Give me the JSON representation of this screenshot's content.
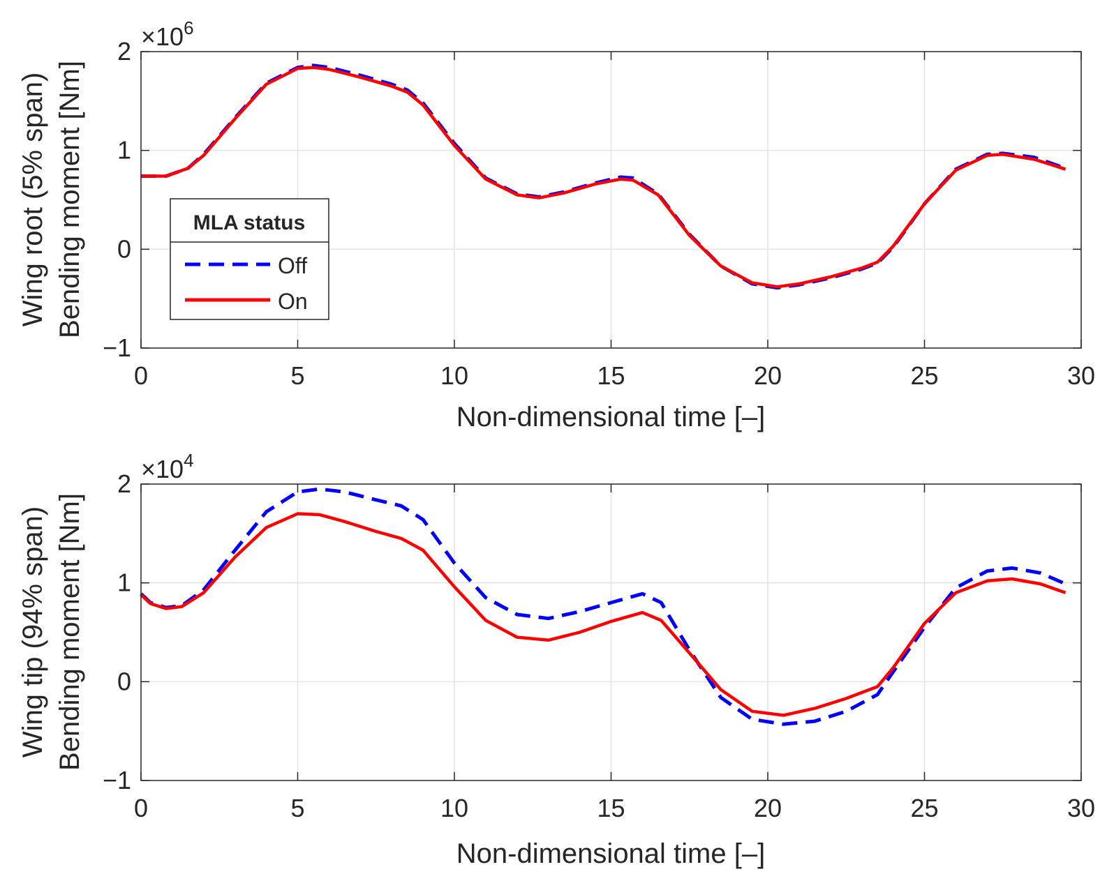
{
  "chart_data": [
    {
      "type": "line",
      "xlabel": "Non-dimensional time [–]",
      "ylabel_line1": "Wing root (5% span)",
      "ylabel_line2": "Bending moment [Nm]",
      "exponent_base": "×10",
      "exponent_power": "6",
      "xlim": [
        0,
        30
      ],
      "ylim": [
        -1,
        2
      ],
      "xticks": [
        0,
        5,
        10,
        15,
        20,
        25,
        30
      ],
      "yticks": [
        -1,
        0,
        1,
        2
      ],
      "xtick_labels": [
        "0",
        "5",
        "10",
        "15",
        "20",
        "25",
        "30"
      ],
      "ytick_labels": [
        "−1",
        "0",
        "1",
        "2"
      ],
      "grid": true,
      "legend": {
        "title": "MLA status",
        "location": "center-left",
        "entries": [
          "Off",
          "On"
        ]
      },
      "series": [
        {
          "name": "Off",
          "style": "dashed",
          "color": "#0000ff",
          "x": [
            0,
            0.8,
            1.5,
            2,
            3,
            4,
            5,
            5.5,
            6,
            7,
            8,
            8.5,
            9,
            10,
            11,
            12,
            12.7,
            13.5,
            14.5,
            15.3,
            15.7,
            16.5,
            17.5,
            18.5,
            19.5,
            20.3,
            21,
            22,
            23,
            23.5,
            24,
            25,
            26,
            27,
            27.5,
            28.5,
            29.5
          ],
          "values": [
            0.74,
            0.74,
            0.82,
            0.96,
            1.33,
            1.68,
            1.84,
            1.86,
            1.84,
            1.76,
            1.67,
            1.61,
            1.48,
            1.07,
            0.72,
            0.56,
            0.53,
            0.58,
            0.67,
            0.73,
            0.72,
            0.56,
            0.15,
            -0.17,
            -0.35,
            -0.39,
            -0.36,
            -0.29,
            -0.2,
            -0.14,
            0.02,
            0.46,
            0.81,
            0.96,
            0.97,
            0.93,
            0.82
          ]
        },
        {
          "name": "On",
          "style": "solid",
          "color": "#ff0000",
          "x": [
            0,
            0.8,
            1.5,
            2,
            3,
            4,
            5,
            5.5,
            6,
            7,
            8,
            8.5,
            9,
            10,
            11,
            12,
            12.7,
            13.5,
            14.5,
            15.3,
            15.7,
            16.5,
            17.5,
            18.5,
            19.5,
            20.3,
            21,
            22,
            23,
            23.5,
            24,
            25,
            26,
            27,
            27.5,
            28.5,
            29.5
          ],
          "values": [
            0.74,
            0.74,
            0.82,
            0.95,
            1.32,
            1.67,
            1.83,
            1.84,
            1.82,
            1.74,
            1.65,
            1.59,
            1.46,
            1.05,
            0.71,
            0.55,
            0.52,
            0.57,
            0.66,
            0.71,
            0.7,
            0.55,
            0.14,
            -0.17,
            -0.34,
            -0.38,
            -0.35,
            -0.28,
            -0.19,
            -0.13,
            0.03,
            0.46,
            0.8,
            0.95,
            0.96,
            0.91,
            0.81
          ]
        }
      ]
    },
    {
      "type": "line",
      "xlabel": "Non-dimensional time [–]",
      "ylabel_line1": "Wing tip (94% span)",
      "ylabel_line2": "Bending moment [Nm]",
      "exponent_base": "×10",
      "exponent_power": "4",
      "xlim": [
        0,
        30
      ],
      "ylim": [
        -1,
        2
      ],
      "xticks": [
        0,
        5,
        10,
        15,
        20,
        25,
        30
      ],
      "yticks": [
        -1,
        0,
        1,
        2
      ],
      "xtick_labels": [
        "0",
        "5",
        "10",
        "15",
        "20",
        "25",
        "30"
      ],
      "ytick_labels": [
        "−1",
        "0",
        "1",
        "2"
      ],
      "grid": true,
      "series": [
        {
          "name": "Off",
          "style": "dashed",
          "color": "#0000ff",
          "x": [
            0,
            0.3,
            0.8,
            1.3,
            2,
            3,
            4,
            5,
            5.7,
            6.5,
            7.5,
            8.3,
            9,
            10,
            11,
            12,
            13,
            14,
            15,
            16,
            16.6,
            17.5,
            18.5,
            19.5,
            20.5,
            21.5,
            22.5,
            23.5,
            24,
            25,
            26,
            27,
            27.8,
            28.7,
            29.5
          ],
          "values": [
            0.89,
            0.8,
            0.75,
            0.77,
            0.93,
            1.33,
            1.72,
            1.92,
            1.95,
            1.92,
            1.84,
            1.78,
            1.64,
            1.2,
            0.85,
            0.68,
            0.64,
            0.71,
            0.8,
            0.89,
            0.8,
            0.32,
            -0.16,
            -0.38,
            -0.43,
            -0.4,
            -0.3,
            -0.13,
            0.1,
            0.55,
            0.95,
            1.12,
            1.15,
            1.1,
            0.99
          ]
        },
        {
          "name": "On",
          "style": "solid",
          "color": "#ff0000",
          "x": [
            0,
            0.3,
            0.8,
            1.3,
            2,
            3,
            4,
            5,
            5.7,
            6.5,
            7.5,
            8.3,
            9,
            10,
            11,
            12,
            13,
            14,
            15,
            16,
            16.6,
            17.5,
            18.5,
            19.5,
            20.5,
            21.5,
            22.5,
            23.5,
            24,
            25,
            26,
            27,
            27.8,
            28.7,
            29.5
          ],
          "values": [
            0.88,
            0.79,
            0.74,
            0.76,
            0.9,
            1.26,
            1.56,
            1.7,
            1.69,
            1.62,
            1.52,
            1.45,
            1.33,
            0.96,
            0.62,
            0.45,
            0.42,
            0.5,
            0.61,
            0.7,
            0.62,
            0.29,
            -0.08,
            -0.3,
            -0.34,
            -0.27,
            -0.17,
            -0.05,
            0.14,
            0.59,
            0.9,
            1.02,
            1.04,
            0.99,
            0.9
          ]
        }
      ]
    }
  ]
}
